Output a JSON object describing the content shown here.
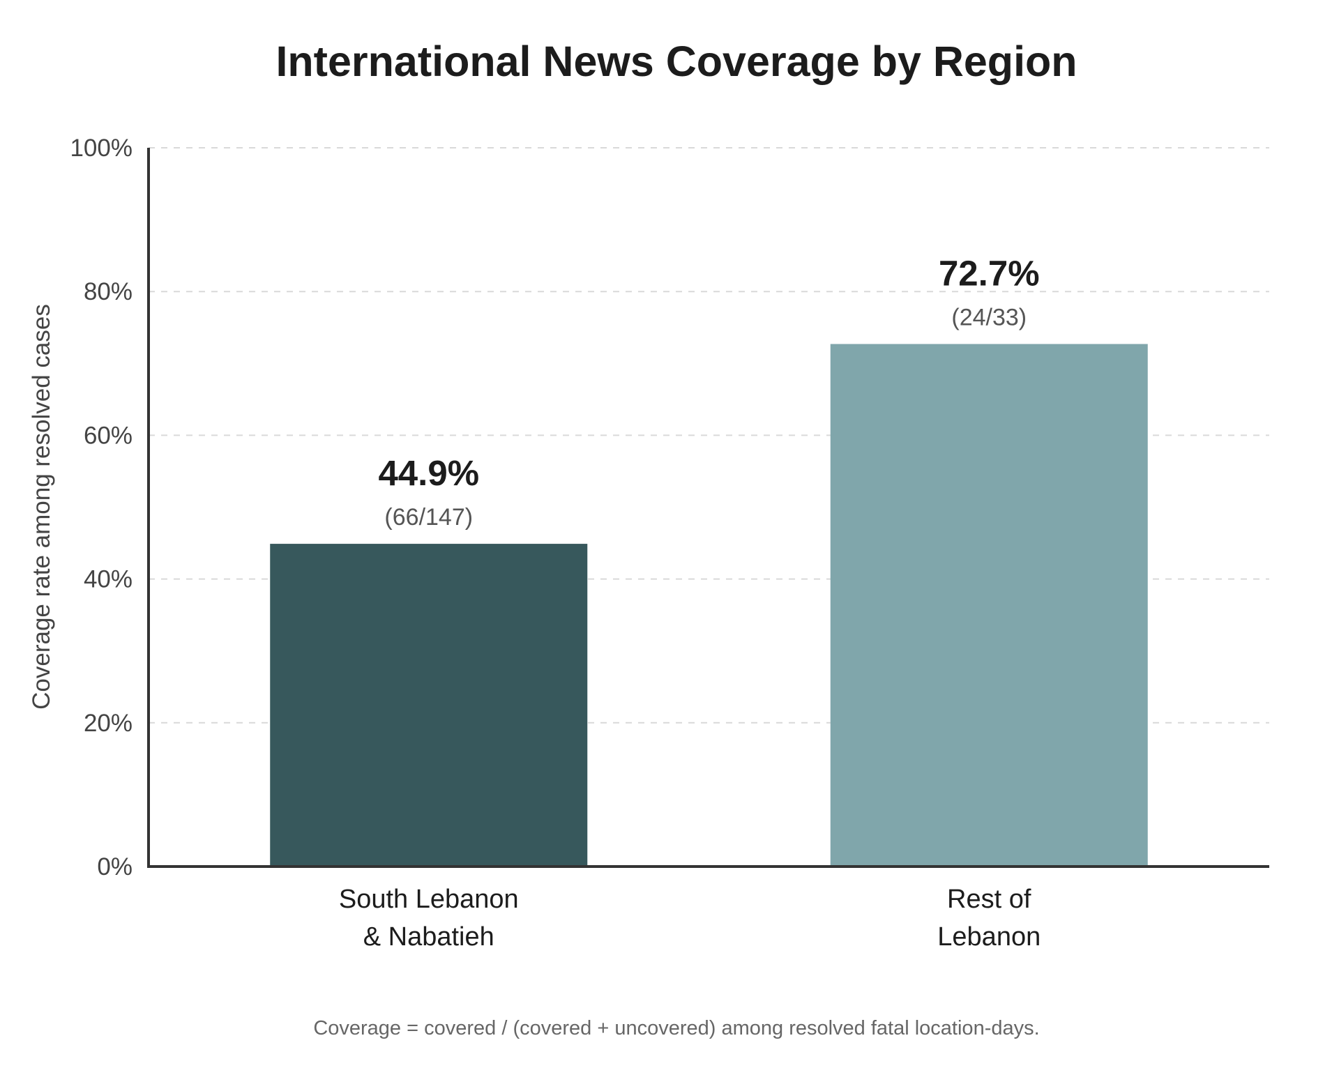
{
  "chart_data": {
    "type": "bar",
    "title": "International News Coverage by Region",
    "ylabel": "Coverage rate among resolved cases",
    "xlabel": "",
    "ylim": [
      0,
      100
    ],
    "y_ticks": [
      0,
      20,
      40,
      60,
      80,
      100
    ],
    "y_tick_labels": [
      "0%",
      "20%",
      "40%",
      "60%",
      "80%",
      "100%"
    ],
    "grid": "horizontal dashed",
    "legend": "none",
    "categories": [
      {
        "lines": [
          "South Lebanon",
          "& Nabatieh"
        ]
      },
      {
        "lines": [
          "Rest of",
          "Lebanon"
        ]
      }
    ],
    "values": [
      44.9,
      72.7
    ],
    "value_labels": [
      "44.9%",
      "72.7%"
    ],
    "count_labels": [
      "(66/147)",
      "(24/33)"
    ],
    "colors": [
      "#37585c",
      "#80a6ab"
    ],
    "grid_color": "#d9d9d9",
    "axis_color": "#333333",
    "footnote": "Coverage = covered / (covered + uncovered) among resolved fatal location-days."
  }
}
